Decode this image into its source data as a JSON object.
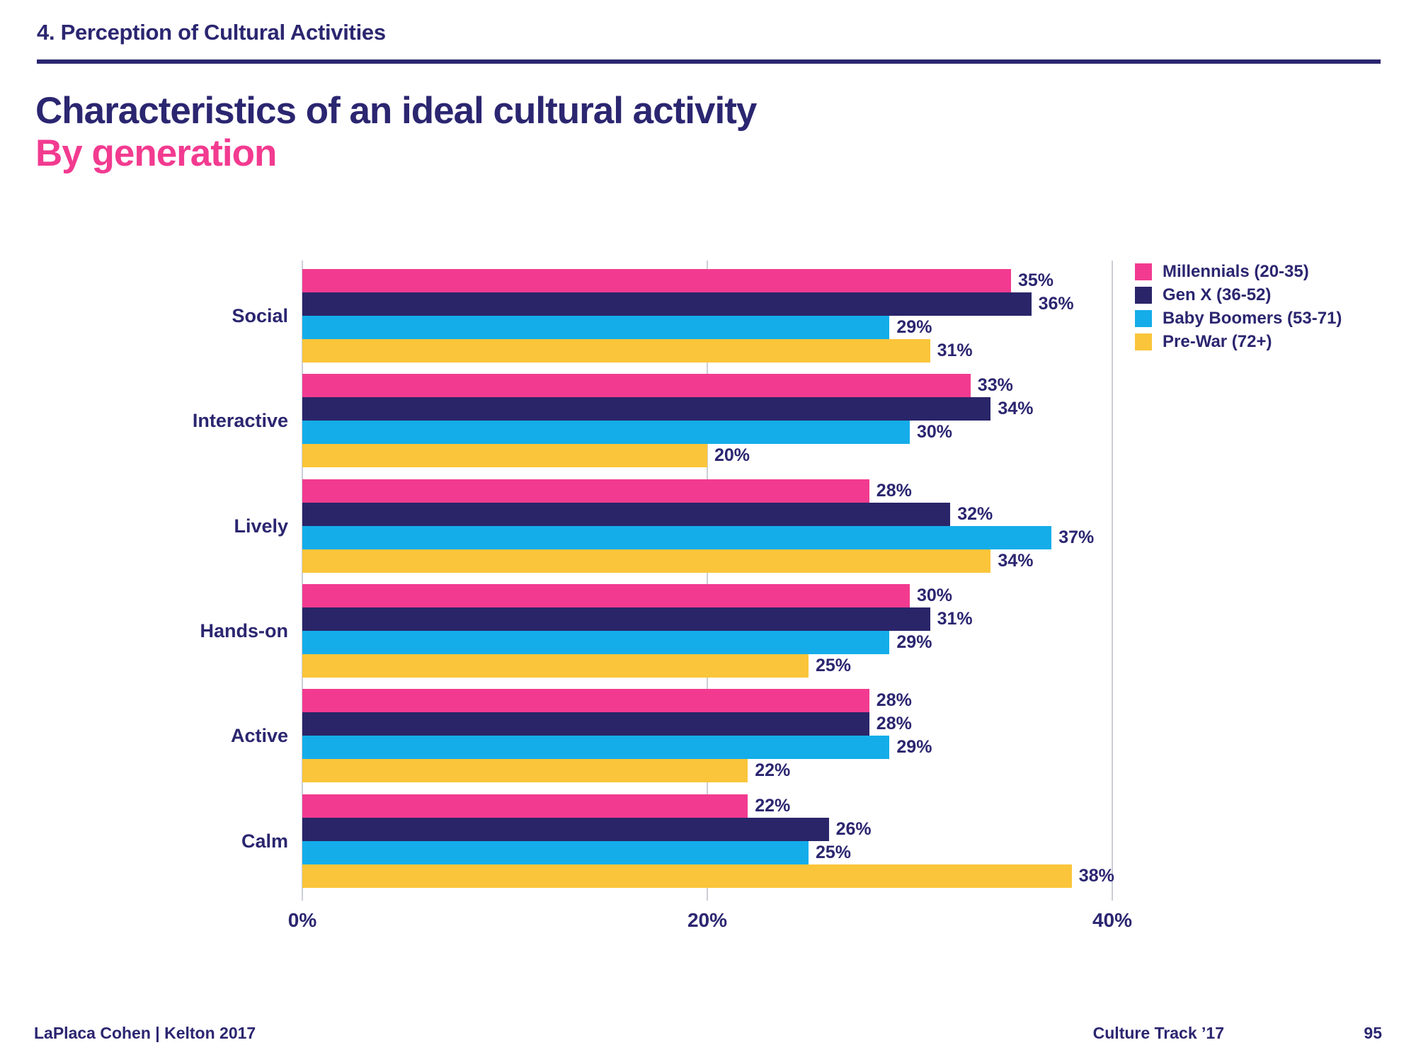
{
  "page": {
    "section_header": "4. Perception of Cultural Activities",
    "title": "Characteristics of an ideal cultural activity",
    "subtitle": "By generation",
    "footer_left": "LaPlaca Cohen | Kelton 2017",
    "footer_right": "Culture Track ’17",
    "page_number": "95"
  },
  "colors": {
    "navy_text": "#2B2670",
    "header_rule": "#2B2670",
    "pink": "#F23B90",
    "dark_navy": "#2A2569",
    "light_blue": "#14ADE9",
    "yellow": "#FAC53A",
    "gridline": "#CBCED6"
  },
  "chart_data": {
    "type": "bar",
    "orientation": "horizontal",
    "title": "Characteristics of an ideal cultural activity",
    "subtitle": "By generation",
    "categories": [
      "Social",
      "Interactive",
      "Lively",
      "Hands-on",
      "Active",
      "Calm"
    ],
    "series": [
      {
        "name": "Millennials (20-35)",
        "color": "#F23B90",
        "values": [
          35,
          33,
          28,
          30,
          28,
          22
        ]
      },
      {
        "name": "Gen X (36-52)",
        "color": "#2A2569",
        "values": [
          36,
          34,
          32,
          31,
          28,
          26
        ]
      },
      {
        "name": "Baby Boomers (53-71)",
        "color": "#14ADE9",
        "values": [
          29,
          30,
          37,
          29,
          29,
          25
        ]
      },
      {
        "name": "Pre-War (72+)",
        "color": "#FAC53A",
        "values": [
          31,
          20,
          34,
          25,
          22,
          38
        ]
      }
    ],
    "xlim": [
      0,
      40
    ],
    "ticks": [
      {
        "value": 0,
        "label": "0%"
      },
      {
        "value": 20,
        "label": "20%"
      },
      {
        "value": 40,
        "label": "40%"
      }
    ],
    "value_suffix": "%",
    "grid": "vertical",
    "legend_position": "top-right",
    "value_labels": "outside-end"
  }
}
